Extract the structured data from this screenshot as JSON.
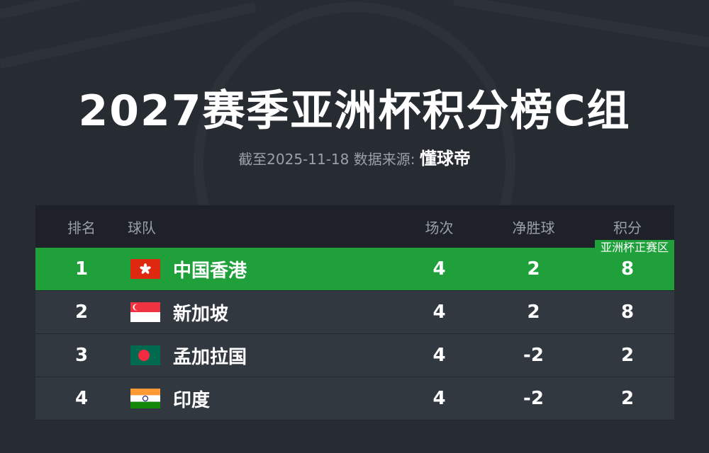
{
  "title": "2027赛季亚洲杯积分榜C组",
  "subtitle": {
    "prefix": "截至2025-11-18 数据来源:",
    "source": "懂球帝"
  },
  "colors": {
    "qualified": "#1fa03a",
    "row": "#313840",
    "header": "#1e2228",
    "background": "#272c32"
  },
  "table": {
    "headers": {
      "rank": "排名",
      "team": "球队",
      "played": "场次",
      "gd": "净胜球",
      "points": "积分"
    },
    "qualified_badge": "亚洲杯正赛区",
    "rows": [
      {
        "rank": "1",
        "team": "中国香港",
        "flag": "hong-kong-flag-icon",
        "played": "4",
        "gd": "2",
        "points": "8"
      },
      {
        "rank": "2",
        "team": "新加坡",
        "flag": "singapore-flag-icon",
        "played": "4",
        "gd": "2",
        "points": "8"
      },
      {
        "rank": "3",
        "team": "孟加拉国",
        "flag": "bangladesh-flag-icon",
        "played": "4",
        "gd": "-2",
        "points": "2"
      },
      {
        "rank": "4",
        "team": "印度",
        "flag": "india-flag-icon",
        "played": "4",
        "gd": "-2",
        "points": "2"
      }
    ]
  }
}
